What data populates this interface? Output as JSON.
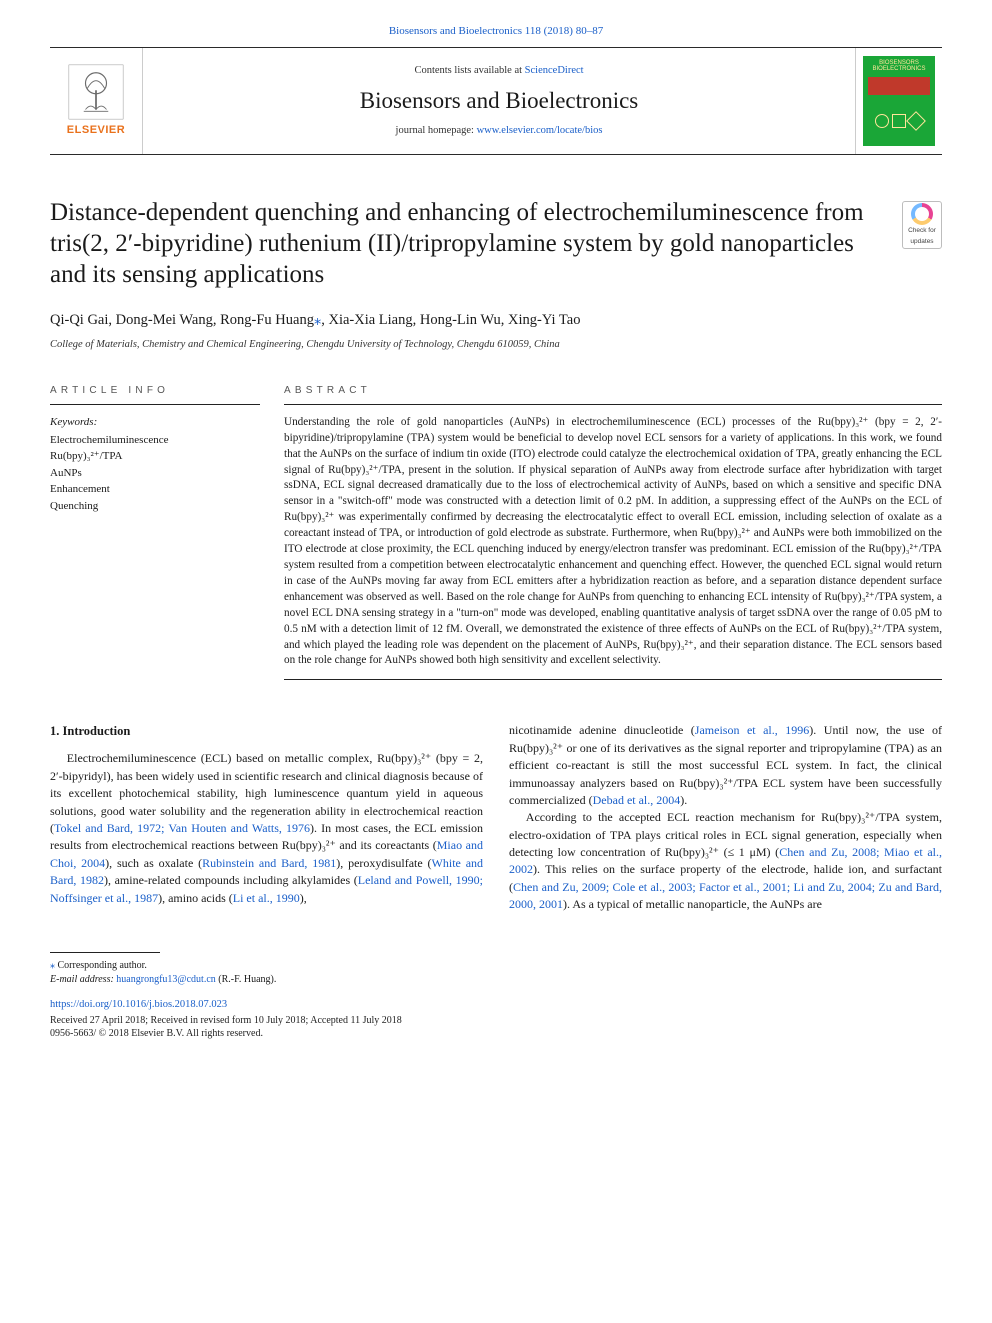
{
  "topRef": {
    "journal": "Biosensors and Bioelectronics",
    "vol": "118",
    "year": "(2018)",
    "pages": "80–87"
  },
  "header": {
    "contentsPrefix": "Contents lists available at ",
    "contentsLinkText": "ScienceDirect",
    "journalName": "Biosensors and Bioelectronics",
    "homepagePrefix": "journal homepage: ",
    "homepageLinkText": "www.elsevier.com/locate/bios",
    "elsevierWord": "ELSEVIER",
    "coverTitle": "BIOSENSORS\nBIOELECTRONICS"
  },
  "updatesBadge": {
    "line1": "Check for",
    "line2": "updates"
  },
  "title": "Distance-dependent quenching and enhancing of electrochemiluminescence from tris(2, 2′-bipyridine) ruthenium (II)/tripropylamine system by gold nanoparticles and its sensing applications",
  "authors": "Qi-Qi Gai, Dong-Mei Wang, Rong-Fu Huang*, Xia-Xia Liang, Hong-Lin Wu, Xing-Yi Tao",
  "affiliation": "College of Materials, Chemistry and Chemical Engineering, Chengdu University of Technology, Chengdu 610059, China",
  "articleInfoLabel": "ARTICLE INFO",
  "abstractLabel": "ABSTRACT",
  "keywordsHead": "Keywords:",
  "keywords": [
    "Electrochemiluminescence",
    "Ru(bpy)₃²⁺/TPA",
    "AuNPs",
    "Enhancement",
    "Quenching"
  ],
  "abstract": "Understanding the role of gold nanoparticles (AuNPs) in electrochemiluminescence (ECL) processes of the Ru(bpy)₃²⁺ (bpy = 2, 2′-bipyridine)/tripropylamine (TPA) system would be beneficial to develop novel ECL sensors for a variety of applications. In this work, we found that the AuNPs on the surface of indium tin oxide (ITO) electrode could catalyze the electrochemical oxidation of TPA, greatly enhancing the ECL signal of Ru(bpy)₃²⁺/TPA, present in the solution. If physical separation of AuNPs away from electrode surface after hybridization with target ssDNA, ECL signal decreased dramatically due to the loss of electrochemical activity of AuNPs, based on which a sensitive and specific DNA sensor in a \"switch-off\" mode was constructed with a detection limit of 0.2 pM. In addition, a suppressing effect of the AuNPs on the ECL of Ru(bpy)₃²⁺ was experimentally confirmed by decreasing the electrocatalytic effect to overall ECL emission, including selection of oxalate as a coreactant instead of TPA, or introduction of gold electrode as substrate. Furthermore, when Ru(bpy)₃²⁺ and AuNPs were both immobilized on the ITO electrode at close proximity, the ECL quenching induced by energy/electron transfer was predominant. ECL emission of the Ru(bpy)₃²⁺/TPA system resulted from a competition between electrocatalytic enhancement and quenching effect. However, the quenched ECL signal would return in case of the AuNPs moving far away from ECL emitters after a hybridization reaction as before, and a separation distance dependent surface enhancement was observed as well. Based on the role change for AuNPs from quenching to enhancing ECL intensity of Ru(bpy)₃²⁺/TPA system, a novel ECL DNA sensing strategy in a \"turn-on\" mode was developed, enabling quantitative analysis of target ssDNA over the range of 0.05 pM to 0.5 nM with a detection limit of 12 fM. Overall, we demonstrated the existence of three effects of AuNPs on the ECL of Ru(bpy)₃²⁺/TPA system, and which played the leading role was dependent on the placement of AuNPs, Ru(bpy)₃²⁺, and their separation distance. The ECL sensors based on the role change for AuNPs showed both high sensitivity and excellent selectivity.",
  "introHead": "1. Introduction",
  "introLeft": "Electrochemiluminescence (ECL) based on metallic complex, Ru(bpy)₃²⁺ (bpy = 2, 2′-bipyridyl), has been widely used in scientific research and clinical diagnosis because of its excellent photochemical stability, high luminescence quantum yield in aqueous solutions, good water solubility and the regeneration ability in electrochemical reaction (|Tokel and Bard, 1972; Van Houten and Watts, 1976|). In most cases, the ECL emission results from electrochemical reactions between Ru(bpy)₃²⁺ and its coreactants (|Miao and Choi, 2004|), such as oxalate (|Rubinstein and Bard, 1981|), peroxydisulfate (|White and Bard, 1982|), amine-related compounds including alkylamides (|Leland and Powell, 1990; Noffsinger et al., 1987|), amino acids (|Li et al., 1990|),",
  "introRight1": "nicotinamide adenine dinucleotide (|Jameison et al., 1996|). Until now, the use of Ru(bpy)₃²⁺ or one of its derivatives as the signal reporter and tripropylamine (TPA) as an efficient co-reactant is still the most successful ECL system. In fact, the clinical immunoassay analyzers based on Ru(bpy)₃²⁺/TPA ECL system have been successfully commercialized (|Debad et al., 2004|).",
  "introRight2": "According to the accepted ECL reaction mechanism for Ru(bpy)₃²⁺/TPA system, electro-oxidation of TPA plays critical roles in ECL signal generation, especially when detecting low concentration of Ru(bpy)₃²⁺ (≤ 1 μM) (|Chen and Zu, 2008; Miao et al., 2002|). This relies on the surface property of the electrode, halide ion, and surfactant (|Chen and Zu, 2009; Cole et al., 2003; Factor et al., 2001; Li and Zu, 2004; Zu and Bard, 2000, 2001|). As a typical of metallic nanoparticle, the AuNPs are",
  "footer": {
    "corrNote": "Corresponding author.",
    "emailLabel": "E-mail address:",
    "email": "huangrongfu13@cdut.cn",
    "emailSuffix": "(R.-F. Huang).",
    "doi": "https://doi.org/10.1016/j.bios.2018.07.023",
    "history": "Received 27 April 2018; Received in revised form 10 July 2018; Accepted 11 July 2018",
    "copyright": "0956-5663/ © 2018 Elsevier B.V. All rights reserved."
  },
  "colors": {
    "link": "#1a5fc9",
    "elsevierOrange": "#e9711c",
    "coverGreen": "#1aa637",
    "coverRed": "#c0392b",
    "text": "#1a1a1a",
    "ruleGray": "#222222"
  },
  "typography": {
    "bodyFont": "Times New Roman",
    "titleSizePx": 25,
    "authorsSizePx": 14.5,
    "abstractSizePx": 11.2,
    "bodySizePx": 12
  },
  "pageDims": {
    "widthPx": 992,
    "heightPx": 1323
  }
}
